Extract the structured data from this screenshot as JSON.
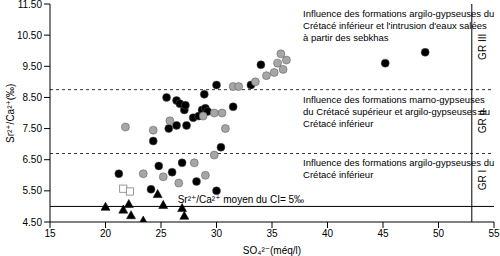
{
  "chart_data": {
    "type": "scatter",
    "x_label": "SO₄²⁻(méq/l)",
    "y_label": "Sr²⁺/Ca²⁺(‰)",
    "xlim": [
      15,
      55
    ],
    "xticks": [
      15,
      20,
      25,
      30,
      35,
      40,
      45,
      50,
      55
    ],
    "ylim": [
      4.5,
      11.5
    ],
    "yticks": [
      {
        "value": 4.5,
        "label": "4.50"
      },
      {
        "value": 5.5,
        "label": "5.50"
      },
      {
        "value": 6.5,
        "label": "6.50"
      },
      {
        "value": 7.5,
        "label": "7.50"
      },
      {
        "value": 8.5,
        "label": "8.50"
      },
      {
        "value": 9.5,
        "label": "9.50"
      },
      {
        "value": 10.5,
        "label": "10.50"
      },
      {
        "value": 11.5,
        "label": "11.50"
      }
    ],
    "grid": false,
    "series": [
      {
        "color": "#000000",
        "marker": "circle",
        "x": [
          21.2,
          24.1,
          24.8,
          26.0,
          26.9,
          28.2,
          30.0,
          30.4,
          24.3,
          25.7,
          26.4,
          27.3,
          27.1,
          27.9,
          28.4,
          28.7,
          29.0,
          29.2,
          28.9,
          26.4,
          26.7,
          27.2,
          25.5,
          30.0,
          31.5,
          33.1,
          34.0,
          45.2,
          48.8
        ],
        "y": [
          6.05,
          5.55,
          6.3,
          6.1,
          6.4,
          5.8,
          5.5,
          6.9,
          7.1,
          7.5,
          7.6,
          7.6,
          8.1,
          7.85,
          7.9,
          8.1,
          8.15,
          8.05,
          8.6,
          8.4,
          8.3,
          8.25,
          8.5,
          8.9,
          8.2,
          8.9,
          9.55,
          9.6,
          9.95
        ]
      },
      {
        "color": "#a6a6a6",
        "marker": "circle",
        "x": [
          21.8,
          23.4,
          25.2,
          26.6,
          28.0,
          29.0,
          29.8,
          25.8,
          24.3,
          28.8,
          30.5,
          31.5,
          32.0,
          33.5,
          34.5,
          35.2,
          35.5,
          35.8,
          36.0,
          36.3,
          29.8,
          30.8
        ],
        "y": [
          7.55,
          6.05,
          5.95,
          5.75,
          6.4,
          6.0,
          6.65,
          7.75,
          7.45,
          7.9,
          8.0,
          8.85,
          8.85,
          9.0,
          9.2,
          9.3,
          9.6,
          9.9,
          9.4,
          9.7,
          8.0,
          7.5
        ]
      },
      {
        "color": "#a6a6a6",
        "marker": "open_square",
        "x": [
          21.6,
          22.2
        ],
        "y": [
          5.57,
          5.48
        ]
      },
      {
        "color": "#000000",
        "marker": "triangle",
        "x": [
          20.0,
          21.6,
          22.1,
          22.3,
          23.4,
          24.7,
          25.2,
          26.9,
          27.1
        ],
        "y": [
          4.99,
          4.9,
          5.08,
          4.72,
          4.55,
          5.4,
          5.05,
          4.95,
          4.7
        ]
      }
    ],
    "reference_lines": [
      {
        "y": 5,
        "line_style": "solid",
        "label": "Sr²⁺/Ca²⁺ moyen du CI= 5‰"
      },
      {
        "y": 6.7,
        "line_style": "dashed"
      },
      {
        "y": 8.75,
        "line_style": "dashed"
      }
    ],
    "bands": [
      {
        "label": "GR I",
        "y": [
          5,
          6.7
        ],
        "text": [
          "Influence des formations argilo-gypseuses du",
          "Crétacé inférieur"
        ]
      },
      {
        "label": "GR II",
        "y": [
          6.7,
          8.75
        ],
        "text": [
          "Influence des formations marno-gypseuses",
          "du Crétacé supérieur et argilo-gypseuses du",
          "Crétacé inférieur"
        ]
      },
      {
        "label": "GR III",
        "y": [
          8.75,
          11.5
        ],
        "text": [
          "Influence des formations argilo-gypseuses du",
          "Crétacé inférieur et l'intrusion d'eaux salées",
          "à partir des sebkhas"
        ]
      }
    ]
  }
}
